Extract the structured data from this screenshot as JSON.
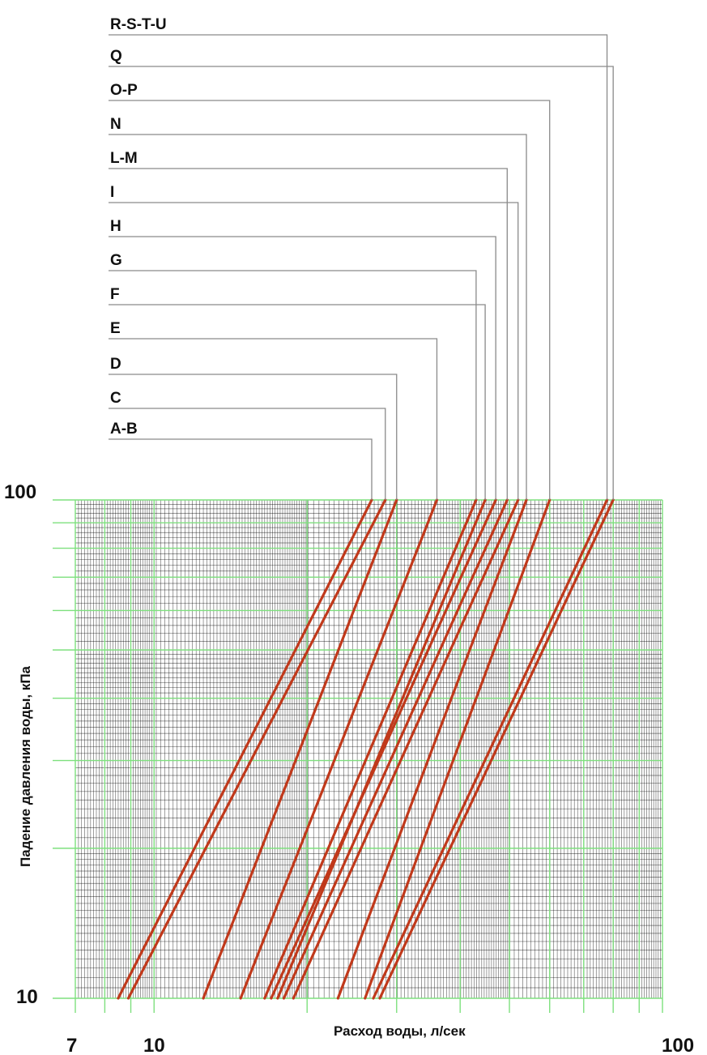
{
  "chart_data": {
    "type": "line",
    "title": "",
    "xlabel": "Расход воды, л/сек",
    "ylabel": "Падение давления воды, кПа",
    "x_scale": "log",
    "y_scale": "log",
    "xlim": [
      7,
      100
    ],
    "ylim": [
      10,
      100
    ],
    "x_tick_labels": [
      "7",
      "10",
      "100"
    ],
    "y_tick_labels": [
      "100",
      "10"
    ],
    "grid": true,
    "legend": "leader-lines-top",
    "line_color": "#c0391b",
    "major_grid_color": "#7ee07e",
    "minor_grid_color": "#000000",
    "series": [
      {
        "name": "R-S-T-U",
        "x_at_y100": 77.8,
        "x_at_y10": 27.0
      },
      {
        "name": "Q",
        "x_at_y100": 80.0,
        "x_at_y10": 27.8
      },
      {
        "name": "O-P",
        "x_at_y100": 60.0,
        "x_at_y10": 26.0
      },
      {
        "name": "N",
        "x_at_y100": 54.0,
        "x_at_y10": 23.0
      },
      {
        "name": "L-M",
        "x_at_y100": 49.5,
        "x_at_y10": 18.0
      },
      {
        "name": "I",
        "x_at_y100": 52.0,
        "x_at_y10": 18.8
      },
      {
        "name": "H",
        "x_at_y100": 47.0,
        "x_at_y10": 17.0
      },
      {
        "name": "G",
        "x_at_y100": 43.0,
        "x_at_y10": 16.5
      },
      {
        "name": "F",
        "x_at_y100": 44.8,
        "x_at_y10": 17.5
      },
      {
        "name": "E",
        "x_at_y100": 36.0,
        "x_at_y10": 14.8
      },
      {
        "name": "D",
        "x_at_y100": 30.0,
        "x_at_y10": 12.5
      },
      {
        "name": "C",
        "x_at_y100": 28.5,
        "x_at_y10": 8.9
      },
      {
        "name": "A-B",
        "x_at_y100": 26.8,
        "x_at_y10": 8.5
      }
    ]
  }
}
